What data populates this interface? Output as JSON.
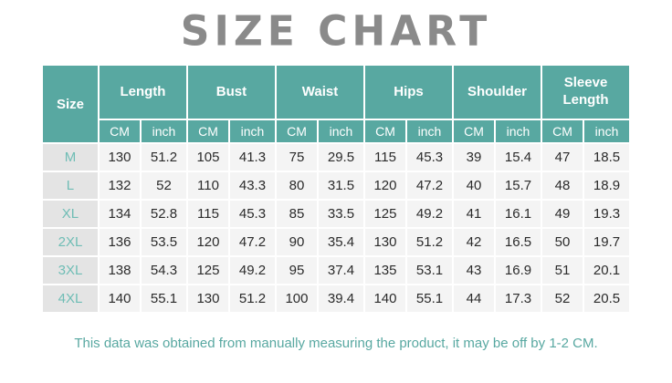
{
  "title": "SIZE CHART",
  "chart_data": {
    "type": "table",
    "title": "SIZE CHART",
    "size_column_header": "Size",
    "measure_groups": [
      "Length",
      "Bust",
      "Waist",
      "Hips",
      "Shoulder",
      "Sleeve Length"
    ],
    "unit_subheaders": [
      "CM",
      "inch"
    ],
    "rows": [
      {
        "size": "M",
        "values": [
          130,
          51.2,
          105,
          41.3,
          75,
          29.5,
          115,
          45.3,
          39,
          15.4,
          47,
          18.5
        ]
      },
      {
        "size": "L",
        "values": [
          132,
          52,
          110,
          43.3,
          80,
          31.5,
          120,
          47.2,
          40,
          15.7,
          48,
          18.9
        ]
      },
      {
        "size": "XL",
        "values": [
          134,
          52.8,
          115,
          45.3,
          85,
          33.5,
          125,
          49.2,
          41,
          16.1,
          49,
          19.3
        ]
      },
      {
        "size": "2XL",
        "values": [
          136,
          53.5,
          120,
          47.2,
          90,
          35.4,
          130,
          51.2,
          42,
          16.5,
          50,
          19.7
        ]
      },
      {
        "size": "3XL",
        "values": [
          138,
          54.3,
          125,
          49.2,
          95,
          37.4,
          135,
          53.1,
          43,
          16.9,
          51,
          20.1
        ]
      },
      {
        "size": "4XL",
        "values": [
          140,
          55.1,
          130,
          51.2,
          100,
          39.4,
          140,
          55.1,
          44,
          17.3,
          52,
          20.5
        ]
      }
    ]
  },
  "footer_note": "This data was obtained from manually measuring the product, it may be off by 1-2 CM.",
  "colors": {
    "header_teal": "#58a8a1",
    "size_label_teal": "#6fbdb5",
    "size_cell_bg": "#e4e4e4",
    "data_cell_bg": "#f4f4f4",
    "data_text": "#2b2b2b",
    "title_gray": "#8a8a8a",
    "footer_teal": "#58a8a1"
  }
}
